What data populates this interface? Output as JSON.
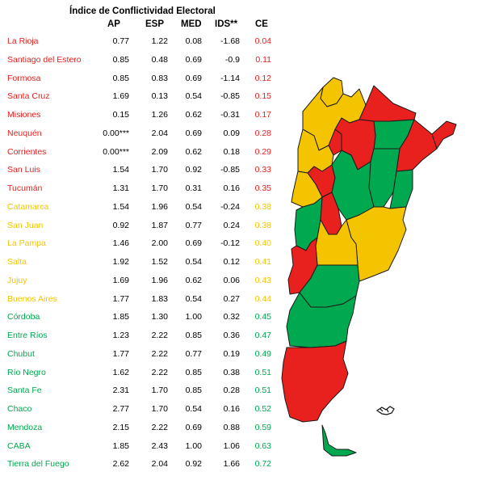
{
  "chart_data": {
    "type": "table",
    "title": "Índice de Conflictividad Electoral",
    "columns": [
      "AP",
      "ESP",
      "MED",
      "IDS**",
      "CE"
    ],
    "colors": {
      "red": "#e8201e",
      "yellow": "#f5c400",
      "green": "#00a84f"
    },
    "rows": [
      {
        "province": "La Rioja",
        "ap": "0.77",
        "esp": "1.22",
        "med": "0.08",
        "ids": "-1.68",
        "ce": "0.04",
        "group": "red"
      },
      {
        "province": "Santiago del Estero",
        "ap": "0.85",
        "esp": "0.48",
        "med": "0.69",
        "ids": "-0.9",
        "ce": "0.11",
        "group": "red"
      },
      {
        "province": "Formosa",
        "ap": "0.85",
        "esp": "0.83",
        "med": "0.69",
        "ids": "-1.14",
        "ce": "0.12",
        "group": "red"
      },
      {
        "province": "Santa Cruz",
        "ap": "1.69",
        "esp": "0.13",
        "med": "0.54",
        "ids": "-0.85",
        "ce": "0.15",
        "group": "red"
      },
      {
        "province": "Misiones",
        "ap": "0.15",
        "esp": "1.26",
        "med": "0.62",
        "ids": "-0.31",
        "ce": "0.17",
        "group": "red"
      },
      {
        "province": "Neuquén",
        "ap": "0.00***",
        "esp": "2.04",
        "med": "0.69",
        "ids": "0.09",
        "ce": "0.28",
        "group": "red"
      },
      {
        "province": "Corrientes",
        "ap": "0.00***",
        "esp": "2.09",
        "med": "0.62",
        "ids": "0.18",
        "ce": "0.29",
        "group": "red"
      },
      {
        "province": "San Luis",
        "ap": "1.54",
        "esp": "1.70",
        "med": "0.92",
        "ids": "-0.85",
        "ce": "0.33",
        "group": "red"
      },
      {
        "province": "Tucumán",
        "ap": "1.31",
        "esp": "1.70",
        "med": "0.31",
        "ids": "0.16",
        "ce": "0.35",
        "group": "red"
      },
      {
        "province": "Catamarca",
        "ap": "1.54",
        "esp": "1.96",
        "med": "0.54",
        "ids": "-0.24",
        "ce": "0.38",
        "group": "yellow"
      },
      {
        "province": "San Juan",
        "ap": "0.92",
        "esp": "1.87",
        "med": "0.77",
        "ids": "0.24",
        "ce": "0.38",
        "group": "yellow"
      },
      {
        "province": "La Pampa",
        "ap": "1.46",
        "esp": "2.00",
        "med": "0.69",
        "ids": "-0.12",
        "ce": "0.40",
        "group": "yellow"
      },
      {
        "province": "Salta",
        "ap": "1.92",
        "esp": "1.52",
        "med": "0.54",
        "ids": "0.12",
        "ce": "0.41",
        "group": "yellow"
      },
      {
        "province": "Jujuy",
        "ap": "1.69",
        "esp": "1.96",
        "med": "0.62",
        "ids": "0.06",
        "ce": "0.43",
        "group": "yellow"
      },
      {
        "province": "Buenos Aires",
        "ap": "1.77",
        "esp": "1.83",
        "med": "0.54",
        "ids": "0.27",
        "ce": "0.44",
        "group": "yellow"
      },
      {
        "province": "Córdoba",
        "ap": "1.85",
        "esp": "1.30",
        "med": "1.00",
        "ids": "0.32",
        "ce": "0.45",
        "group": "green"
      },
      {
        "province": "Entre Ríos",
        "ap": "1.23",
        "esp": "2.22",
        "med": "0.85",
        "ids": "0.36",
        "ce": "0.47",
        "group": "green"
      },
      {
        "province": "Chubut",
        "ap": "1.77",
        "esp": "2.22",
        "med": "0.77",
        "ids": "0.19",
        "ce": "0.49",
        "group": "green"
      },
      {
        "province": "Río Negro",
        "ap": "1.62",
        "esp": "2.22",
        "med": "0.85",
        "ids": "0.38",
        "ce": "0.51",
        "group": "green"
      },
      {
        "province": "Santa Fe",
        "ap": "2.31",
        "esp": "1.70",
        "med": "0.85",
        "ids": "0.28",
        "ce": "0.51",
        "group": "green"
      },
      {
        "province": "Chaco",
        "ap": "2.77",
        "esp": "1.70",
        "med": "0.54",
        "ids": "0.16",
        "ce": "0.52",
        "group": "green"
      },
      {
        "province": "Mendoza",
        "ap": "2.15",
        "esp": "2.22",
        "med": "0.69",
        "ids": "0.88",
        "ce": "0.59",
        "group": "green"
      },
      {
        "province": "CABA",
        "ap": "1.85",
        "esp": "2.43",
        "med": "1.00",
        "ids": "1.06",
        "ce": "0.63",
        "group": "green"
      },
      {
        "province": "Tierra del Fuego",
        "ap": "2.62",
        "esp": "2.04",
        "med": "0.92",
        "ids": "1.66",
        "ce": "0.72",
        "group": "green"
      }
    ],
    "map_groups": {
      "Jujuy": "yellow",
      "Salta": "yellow",
      "Formosa": "red",
      "Chaco": "green",
      "Misiones": "red",
      "Tucumán": "red",
      "Catamarca": "yellow",
      "Santiago del Estero": "red",
      "Corrientes": "red",
      "La Rioja": "red",
      "Santa Fe": "green",
      "Entre Ríos": "green",
      "San Juan": "yellow",
      "Córdoba": "green",
      "Mendoza": "green",
      "San Luis": "red",
      "Buenos Aires": "yellow",
      "La Pampa": "yellow",
      "Neuquén": "red",
      "Río Negro": "green",
      "Chubut": "green",
      "Santa Cruz": "red",
      "Tierra del Fuego": "green"
    }
  }
}
